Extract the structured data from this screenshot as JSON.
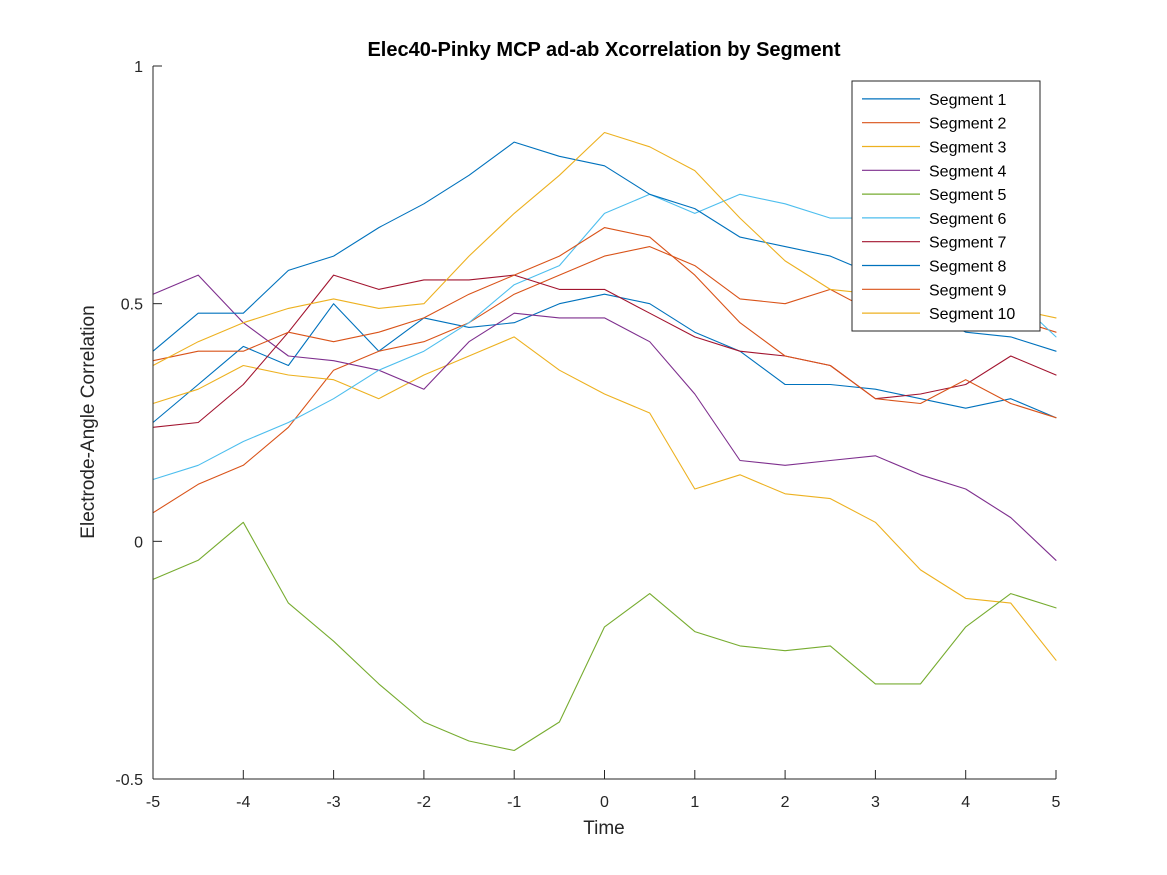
{
  "chart_data": {
    "type": "line",
    "title": "Elec40-Pinky MCP ad-ab Xcorrelation by Segment",
    "xlabel": "Time",
    "ylabel": "Electrode-Angle Correlation",
    "xlim": [
      -5,
      5
    ],
    "ylim": [
      -0.5,
      1
    ],
    "xticks": [
      "-5",
      "-4",
      "-3",
      "-2",
      "-1",
      "0",
      "1",
      "2",
      "3",
      "4",
      "5"
    ],
    "yticks": [
      "-0.5",
      "0",
      "0.5",
      "1"
    ],
    "legend_position": "top-right",
    "grid": false,
    "x": [
      -5,
      -4.5,
      -4,
      -3.5,
      -3,
      -2.5,
      -2,
      -1.5,
      -1,
      -0.5,
      0,
      0.5,
      1,
      1.5,
      2,
      2.5,
      3,
      3.5,
      4,
      4.5,
      5
    ],
    "series": [
      {
        "name": "Segment 1",
        "color": "#0072BD",
        "values": [
          0.25,
          0.33,
          0.41,
          0.37,
          0.5,
          0.4,
          0.47,
          0.45,
          0.46,
          0.5,
          0.52,
          0.5,
          0.44,
          0.4,
          0.33,
          0.33,
          0.32,
          0.3,
          0.28,
          0.3,
          0.26
        ]
      },
      {
        "name": "Segment 2",
        "color": "#D95319",
        "values": [
          0.06,
          0.12,
          0.16,
          0.24,
          0.36,
          0.4,
          0.42,
          0.46,
          0.52,
          0.56,
          0.6,
          0.62,
          0.58,
          0.51,
          0.5,
          0.53,
          0.48,
          0.47,
          0.46,
          0.47,
          0.44
        ]
      },
      {
        "name": "Segment 3",
        "color": "#EDB120",
        "values": [
          0.29,
          0.32,
          0.37,
          0.35,
          0.34,
          0.3,
          0.35,
          0.39,
          0.43,
          0.36,
          0.31,
          0.27,
          0.11,
          0.14,
          0.1,
          0.09,
          0.04,
          -0.06,
          -0.12,
          -0.13,
          -0.25
        ]
      },
      {
        "name": "Segment 4",
        "color": "#7E2F8E",
        "values": [
          0.52,
          0.56,
          0.46,
          0.39,
          0.38,
          0.36,
          0.32,
          0.42,
          0.48,
          0.47,
          0.47,
          0.42,
          0.31,
          0.17,
          0.16,
          0.17,
          0.18,
          0.14,
          0.11,
          0.05,
          -0.04
        ]
      },
      {
        "name": "Segment 5",
        "color": "#77AC30",
        "values": [
          -0.08,
          -0.04,
          0.04,
          -0.13,
          -0.21,
          -0.3,
          -0.38,
          -0.42,
          -0.44,
          -0.38,
          -0.18,
          -0.11,
          -0.19,
          -0.22,
          -0.23,
          -0.22,
          -0.3,
          -0.3,
          -0.18,
          -0.11,
          -0.14
        ]
      },
      {
        "name": "Segment 6",
        "color": "#4DBEEE",
        "values": [
          0.13,
          0.16,
          0.21,
          0.25,
          0.3,
          0.36,
          0.4,
          0.46,
          0.54,
          0.58,
          0.69,
          0.73,
          0.69,
          0.73,
          0.71,
          0.68,
          0.68,
          0.62,
          0.56,
          0.52,
          0.43
        ]
      },
      {
        "name": "Segment 7",
        "color": "#A2142F",
        "values": [
          0.24,
          0.25,
          0.33,
          0.44,
          0.56,
          0.53,
          0.55,
          0.55,
          0.56,
          0.53,
          0.53,
          0.48,
          0.43,
          0.4,
          0.39,
          0.37,
          0.3,
          0.31,
          0.33,
          0.39,
          0.35
        ]
      },
      {
        "name": "Segment 8",
        "color": "#0072BD",
        "values": [
          0.4,
          0.48,
          0.48,
          0.57,
          0.6,
          0.66,
          0.71,
          0.77,
          0.84,
          0.81,
          0.79,
          0.73,
          0.7,
          0.64,
          0.62,
          0.6,
          0.56,
          0.49,
          0.44,
          0.43,
          0.4
        ]
      },
      {
        "name": "Segment 9",
        "color": "#D95319",
        "values": [
          0.38,
          0.4,
          0.4,
          0.44,
          0.42,
          0.44,
          0.47,
          0.52,
          0.56,
          0.6,
          0.66,
          0.64,
          0.56,
          0.46,
          0.39,
          0.37,
          0.3,
          0.29,
          0.34,
          0.29,
          0.26
        ]
      },
      {
        "name": "Segment 10",
        "color": "#EDB120",
        "values": [
          0.37,
          0.42,
          0.46,
          0.49,
          0.51,
          0.49,
          0.5,
          0.6,
          0.69,
          0.77,
          0.86,
          0.83,
          0.78,
          0.68,
          0.59,
          0.53,
          0.52,
          0.54,
          0.52,
          0.49,
          0.47
        ]
      }
    ]
  }
}
